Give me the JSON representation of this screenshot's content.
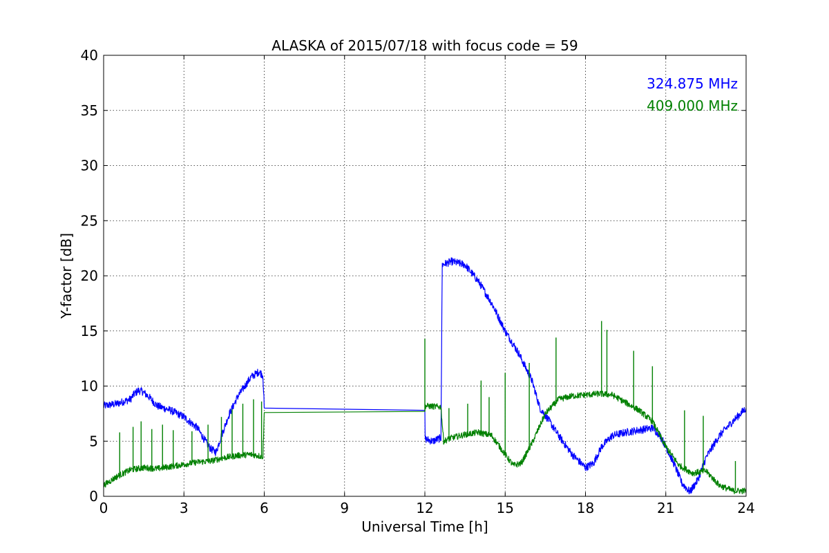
{
  "chart_data": {
    "type": "line",
    "title": "ALASKA of 2015/07/18 with focus code = 59",
    "xlabel": "Universal Time [h]",
    "ylabel": "Y-factor [dB]",
    "xlim": [
      0,
      24
    ],
    "ylim": [
      0,
      40
    ],
    "xticks": [
      0,
      3,
      6,
      9,
      12,
      15,
      18,
      21,
      24
    ],
    "yticks": [
      0,
      5,
      10,
      15,
      20,
      25,
      30,
      35,
      40
    ],
    "grid": true,
    "legend_position": "top-right",
    "series": [
      {
        "name": "324.875 MHz",
        "color": "#0000ff",
        "noise": 0.35,
        "points": [
          [
            0.0,
            8.2
          ],
          [
            0.5,
            8.4
          ],
          [
            1.0,
            8.8
          ],
          [
            1.15,
            9.3
          ],
          [
            1.3,
            9.6
          ],
          [
            1.45,
            9.5
          ],
          [
            1.7,
            9.0
          ],
          [
            2.0,
            8.2
          ],
          [
            2.5,
            7.8
          ],
          [
            3.0,
            7.2
          ],
          [
            3.5,
            6.2
          ],
          [
            3.8,
            5.0
          ],
          [
            4.0,
            4.3
          ],
          [
            4.2,
            4.0
          ],
          [
            4.4,
            5.5
          ],
          [
            4.7,
            7.5
          ],
          [
            5.0,
            9.0
          ],
          [
            5.5,
            10.8
          ],
          [
            5.8,
            11.3
          ],
          [
            5.95,
            11.0
          ],
          [
            6.0,
            8.0
          ],
          [
            12.0,
            7.8
          ],
          [
            12.01,
            5.2
          ],
          [
            12.3,
            5.0
          ],
          [
            12.6,
            5.3
          ],
          [
            12.65,
            21.0
          ],
          [
            13.0,
            21.3
          ],
          [
            13.5,
            21.0
          ],
          [
            14.0,
            19.5
          ],
          [
            14.5,
            17.5
          ],
          [
            15.0,
            15.0
          ],
          [
            15.5,
            13.0
          ],
          [
            16.0,
            10.5
          ],
          [
            16.3,
            8.0
          ],
          [
            16.6,
            7.0
          ],
          [
            17.0,
            5.5
          ],
          [
            17.5,
            3.8
          ],
          [
            18.0,
            2.6
          ],
          [
            18.3,
            3.0
          ],
          [
            18.6,
            4.5
          ],
          [
            19.0,
            5.5
          ],
          [
            19.5,
            5.8
          ],
          [
            20.0,
            6.0
          ],
          [
            20.5,
            6.2
          ],
          [
            20.8,
            5.5
          ],
          [
            21.0,
            4.5
          ],
          [
            21.3,
            3.0
          ],
          [
            21.6,
            1.2
          ],
          [
            21.9,
            0.4
          ],
          [
            22.2,
            1.5
          ],
          [
            22.5,
            3.5
          ],
          [
            23.0,
            5.5
          ],
          [
            23.5,
            6.8
          ],
          [
            24.0,
            8.0
          ]
        ]
      },
      {
        "name": "409.000 MHz",
        "color": "#008000",
        "noise": 0.28,
        "points": [
          [
            0.0,
            1.0
          ],
          [
            0.5,
            1.8
          ],
          [
            1.0,
            2.4
          ],
          [
            1.5,
            2.6
          ],
          [
            2.0,
            2.5
          ],
          [
            2.5,
            2.7
          ],
          [
            3.0,
            2.9
          ],
          [
            3.5,
            3.1
          ],
          [
            4.0,
            3.2
          ],
          [
            4.5,
            3.5
          ],
          [
            5.0,
            3.7
          ],
          [
            5.5,
            3.8
          ],
          [
            5.95,
            3.6
          ],
          [
            6.0,
            7.6
          ],
          [
            12.0,
            7.7
          ],
          [
            12.01,
            8.2
          ],
          [
            12.6,
            8.1
          ],
          [
            12.7,
            5.0
          ],
          [
            13.0,
            5.3
          ],
          [
            13.5,
            5.6
          ],
          [
            14.0,
            5.8
          ],
          [
            14.5,
            5.5
          ],
          [
            15.0,
            3.8
          ],
          [
            15.3,
            2.8
          ],
          [
            15.6,
            3.0
          ],
          [
            16.0,
            4.8
          ],
          [
            16.5,
            7.5
          ],
          [
            17.0,
            8.8
          ],
          [
            17.5,
            9.1
          ],
          [
            18.0,
            9.2
          ],
          [
            18.5,
            9.3
          ],
          [
            19.0,
            9.2
          ],
          [
            19.5,
            8.5
          ],
          [
            20.0,
            7.8
          ],
          [
            20.5,
            6.8
          ],
          [
            21.0,
            4.5
          ],
          [
            21.5,
            2.8
          ],
          [
            22.0,
            2.1
          ],
          [
            22.5,
            2.3
          ],
          [
            23.0,
            1.0
          ],
          [
            23.5,
            0.5
          ],
          [
            24.0,
            0.5
          ]
        ],
        "spikes": [
          [
            0.6,
            5.8
          ],
          [
            1.1,
            6.3
          ],
          [
            1.4,
            6.8
          ],
          [
            1.8,
            6.1
          ],
          [
            2.2,
            6.5
          ],
          [
            2.6,
            6.0
          ],
          [
            3.3,
            5.9
          ],
          [
            3.9,
            6.5
          ],
          [
            4.4,
            7.2
          ],
          [
            4.8,
            7.9
          ],
          [
            5.2,
            8.4
          ],
          [
            5.6,
            8.8
          ],
          [
            5.9,
            8.6
          ],
          [
            12.0,
            14.3
          ],
          [
            12.9,
            8.0
          ],
          [
            13.6,
            8.4
          ],
          [
            14.1,
            10.5
          ],
          [
            14.4,
            9.0
          ],
          [
            15.0,
            11.2
          ],
          [
            15.9,
            12.1
          ],
          [
            16.9,
            14.4
          ],
          [
            18.6,
            15.9
          ],
          [
            18.8,
            15.1
          ],
          [
            19.8,
            13.2
          ],
          [
            20.5,
            11.8
          ],
          [
            21.7,
            7.8
          ],
          [
            22.4,
            7.3
          ],
          [
            23.6,
            3.2
          ]
        ]
      }
    ]
  }
}
